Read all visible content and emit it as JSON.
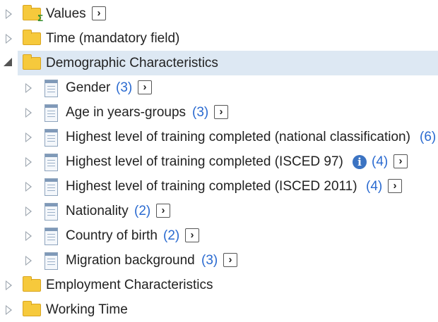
{
  "tree": {
    "values": {
      "label": "Values",
      "icon": "folder-sum-icon"
    },
    "time": {
      "label": "Time (mandatory field)",
      "icon": "folder-icon"
    },
    "demographic": {
      "label": "Demographic Characteristics",
      "icon": "folder-icon",
      "expanded": true,
      "selected": true
    },
    "children": [
      {
        "label": "Gender",
        "count": "(3)"
      },
      {
        "label": "Age in years-groups",
        "count": "(3)"
      },
      {
        "label": "Highest level of training completed (national classification)",
        "count": "(6)"
      },
      {
        "label": "Highest level of training completed (ISCED 97)",
        "count": "(4)",
        "info_icon": true
      },
      {
        "label": "Highest level of training completed (ISCED 2011)",
        "count": "(4)"
      },
      {
        "label": "Nationality",
        "count": "(2)"
      },
      {
        "label": "Country of birth",
        "count": "(2)"
      },
      {
        "label": "Migration background",
        "count": "(3)"
      }
    ],
    "employment": {
      "label": "Employment Characteristics",
      "icon": "folder-icon"
    },
    "working_time": {
      "label": "Working Time",
      "icon": "folder-icon"
    }
  },
  "colors": {
    "selected_bg": "#dde8f3",
    "count": "#2a6ad0",
    "folder": "#f6c93c",
    "info": "#3b73c2"
  },
  "go_glyph": "›",
  "info_glyph": "i"
}
